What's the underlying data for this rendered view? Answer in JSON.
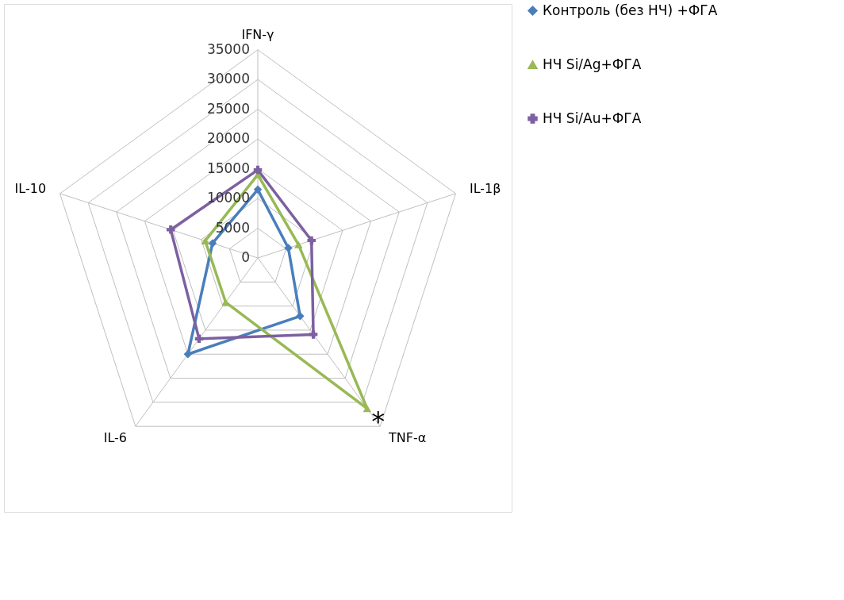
{
  "chart_data": {
    "type": "radar",
    "categories": [
      "IFN-γ",
      "IL-1β",
      "TNF-α",
      "IL-6",
      "IL-10"
    ],
    "ylim": [
      0,
      35000
    ],
    "yticks": [
      0,
      5000,
      10000,
      15000,
      20000,
      25000,
      30000,
      35000
    ],
    "grid": true,
    "legend": "right",
    "series": [
      {
        "name": "Контроль (без НЧ) +ФГА",
        "color": "#4a7ebb",
        "marker": "diamond",
        "values": [
          11500,
          5400,
          12100,
          20000,
          8000
        ]
      },
      {
        "name": "НЧ Si/Ag+ФГА",
        "color": "#98b954",
        "marker": "triangle",
        "values": [
          14000,
          7200,
          31300,
          9200,
          9300
        ]
      },
      {
        "name": "НЧ Si/Au+ФГА",
        "color": "#7d60a0",
        "marker": "cross",
        "values": [
          14800,
          9500,
          15900,
          16800,
          15400
        ]
      }
    ],
    "annotations": [
      {
        "text": "*",
        "x": "TNF-α"
      }
    ]
  }
}
